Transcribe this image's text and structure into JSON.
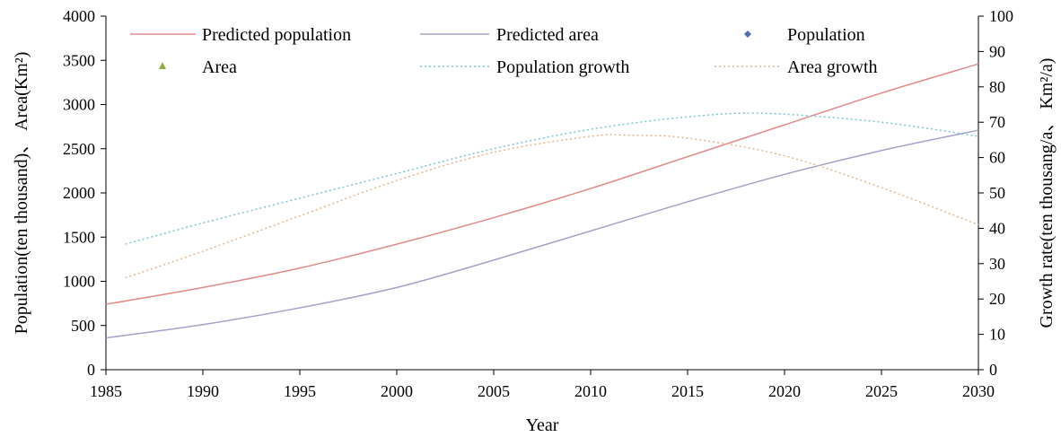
{
  "chart_data": {
    "type": "line",
    "xlabel": "Year",
    "ylabel_left": "Population(ten thousand)、 Area(Km²)",
    "ylabel_right": "Growth rate(ten thousang/a、 Km²/a)",
    "xlim": [
      1985,
      2030
    ],
    "ylim_left": [
      0,
      4000
    ],
    "ylim_right": [
      0,
      100
    ],
    "xticks": [
      1985,
      1990,
      1995,
      2000,
      2005,
      2010,
      2015,
      2020,
      2025,
      2030
    ],
    "yticks_left": [
      0,
      500,
      1000,
      1500,
      2000,
      2500,
      3000,
      3500,
      4000
    ],
    "yticks_right": [
      0,
      10,
      20,
      30,
      40,
      50,
      60,
      70,
      80,
      90,
      100
    ],
    "grid": false,
    "legend_position": "top",
    "legend": [
      {
        "label": "Predicted population",
        "style": "solid-line",
        "color": "#e08a8a"
      },
      {
        "label": "Predicted area",
        "style": "solid-line",
        "color": "#a7a0c8"
      },
      {
        "label": "Population",
        "style": "diamond-marker",
        "color": "#4a6fb5"
      },
      {
        "label": "Area",
        "style": "triangle-marker",
        "color": "#8fae3c"
      },
      {
        "label": "Population growth",
        "style": "dotted-line",
        "color": "#7cc4d6"
      },
      {
        "label": "Area growth",
        "style": "dotted-line",
        "color": "#e7b58a"
      }
    ],
    "series": [
      {
        "name": "Predicted population",
        "axis": "left",
        "color": "#e08a8a",
        "dash": "none",
        "x": [
          1985,
          1990,
          1995,
          2000,
          2005,
          2010,
          2015,
          2020,
          2025,
          2030
        ],
        "y": [
          740,
          930,
          1150,
          1420,
          1720,
          2050,
          2410,
          2770,
          3130,
          3460
        ]
      },
      {
        "name": "Predicted area",
        "axis": "left",
        "color": "#a7a0c8",
        "dash": "none",
        "x": [
          1985,
          1990,
          1995,
          2000,
          2005,
          2010,
          2015,
          2020,
          2025,
          2030
        ],
        "y": [
          360,
          510,
          700,
          930,
          1240,
          1570,
          1900,
          2210,
          2480,
          2710
        ]
      },
      {
        "name": "Population growth",
        "axis": "right",
        "color": "#7cc4d6",
        "dash": "2,3",
        "x": [
          1986,
          1990,
          1995,
          2000,
          2005,
          2010,
          2015,
          2019,
          2025,
          2030
        ],
        "y": [
          35.5,
          41.5,
          48.5,
          55.5,
          62.5,
          68,
          71.5,
          72.5,
          70,
          66
        ]
      },
      {
        "name": "Area growth",
        "axis": "right",
        "color": "#e7b58a",
        "dash": "2,3",
        "x": [
          1986,
          1990,
          1995,
          2000,
          2005,
          2010,
          2012,
          2015,
          2020,
          2025,
          2030
        ],
        "y": [
          26,
          33.5,
          43.5,
          53.5,
          61.5,
          66,
          66.3,
          65.5,
          60.5,
          51.5,
          41
        ]
      }
    ]
  }
}
